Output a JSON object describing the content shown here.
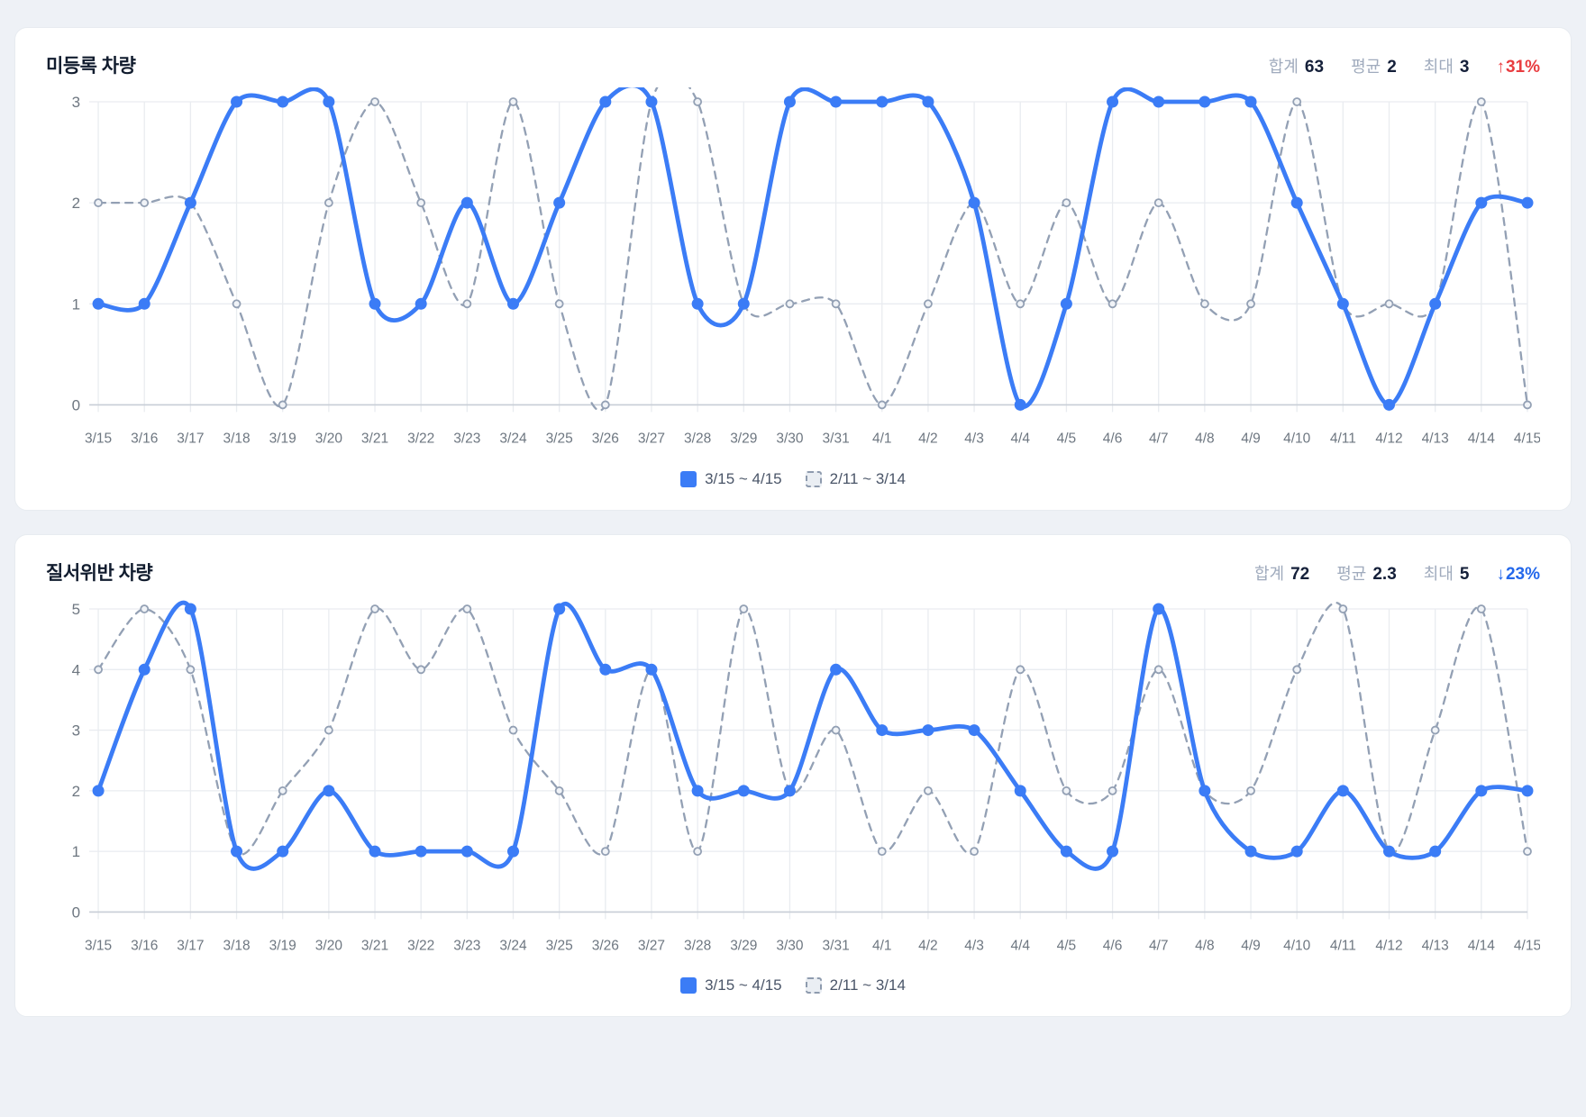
{
  "page": {
    "background": "#eef1f6"
  },
  "colors": {
    "current_line": "#3b7cf6",
    "previous_line": "#93a0b4",
    "grid": "#e9ecf0",
    "axis": "#c8ced6",
    "tick_text": "#6e7781",
    "delta_up": "#e93d40",
    "delta_down": "#2468eb"
  },
  "charts": [
    {
      "title": "미등록 차량",
      "stats": [
        {
          "label": "합계",
          "value": "63"
        },
        {
          "label": "평균",
          "value": "2"
        },
        {
          "label": "최대",
          "value": "3"
        }
      ],
      "delta": {
        "arrow": "↑",
        "value": "31%",
        "dir": "up"
      },
      "chart_data": {
        "type": "line",
        "x": [
          "3/15",
          "3/16",
          "3/17",
          "3/18",
          "3/19",
          "3/20",
          "3/21",
          "3/22",
          "3/23",
          "3/24",
          "3/25",
          "3/26",
          "3/27",
          "3/28",
          "3/29",
          "3/30",
          "3/31",
          "4/1",
          "4/2",
          "4/3",
          "4/4",
          "4/5",
          "4/6",
          "4/7",
          "4/8",
          "4/9",
          "4/10",
          "4/11",
          "4/12",
          "4/13",
          "4/14",
          "4/15"
        ],
        "ylim": [
          0,
          3
        ],
        "yticks": [
          0,
          1,
          2,
          3
        ],
        "grid": true,
        "legend_position": "bottom",
        "series": [
          {
            "name": "3/15 ~ 4/15",
            "style": "solid",
            "color": "#3b7cf6",
            "values": [
              1,
              1,
              2,
              3,
              3,
              3,
              1,
              1,
              2,
              1,
              2,
              3,
              3,
              1,
              1,
              3,
              3,
              3,
              3,
              2,
              0,
              1,
              3,
              3,
              3,
              3,
              2,
              1,
              0,
              1,
              2,
              2
            ]
          },
          {
            "name": "2/11 ~ 3/14",
            "style": "dashed",
            "color": "#93a0b4",
            "values": [
              2,
              2,
              2,
              1,
              0,
              2,
              3,
              2,
              1,
              3,
              1,
              0,
              3,
              3,
              1,
              1,
              1,
              0,
              1,
              2,
              1,
              2,
              1,
              2,
              1,
              1,
              3,
              1,
              1,
              1,
              3,
              0
            ]
          }
        ]
      }
    },
    {
      "title": "질서위반 차량",
      "stats": [
        {
          "label": "합계",
          "value": "72"
        },
        {
          "label": "평균",
          "value": "2.3"
        },
        {
          "label": "최대",
          "value": "5"
        }
      ],
      "delta": {
        "arrow": "↓",
        "value": "23%",
        "dir": "down"
      },
      "chart_data": {
        "type": "line",
        "x": [
          "3/15",
          "3/16",
          "3/17",
          "3/18",
          "3/19",
          "3/20",
          "3/21",
          "3/22",
          "3/23",
          "3/24",
          "3/25",
          "3/26",
          "3/27",
          "3/28",
          "3/29",
          "3/30",
          "3/31",
          "4/1",
          "4/2",
          "4/3",
          "4/4",
          "4/5",
          "4/6",
          "4/7",
          "4/8",
          "4/9",
          "4/10",
          "4/11",
          "4/12",
          "4/13",
          "4/14",
          "4/15"
        ],
        "ylim": [
          0,
          5
        ],
        "yticks": [
          0,
          1,
          2,
          3,
          4,
          5
        ],
        "grid": true,
        "legend_position": "bottom",
        "series": [
          {
            "name": "3/15 ~ 4/15",
            "style": "solid",
            "color": "#3b7cf6",
            "values": [
              2,
              4,
              5,
              1,
              1,
              2,
              1,
              1,
              1,
              1,
              5,
              4,
              4,
              2,
              2,
              2,
              4,
              3,
              3,
              3,
              2,
              1,
              1,
              5,
              2,
              1,
              1,
              2,
              1,
              1,
              2,
              2
            ]
          },
          {
            "name": "2/11 ~ 3/14",
            "style": "dashed",
            "color": "#93a0b4",
            "values": [
              4,
              5,
              4,
              1,
              2,
              3,
              5,
              4,
              5,
              3,
              2,
              1,
              4,
              1,
              5,
              2,
              3,
              1,
              2,
              1,
              4,
              2,
              2,
              4,
              2,
              2,
              4,
              5,
              1,
              3,
              5,
              1
            ]
          }
        ]
      }
    }
  ]
}
